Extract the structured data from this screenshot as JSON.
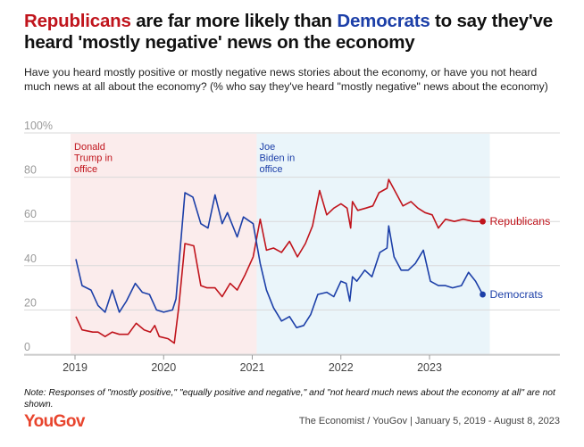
{
  "title": {
    "part1": "Republicans",
    "part2": " are far more likely than ",
    "part3": "Democrats",
    "part4": " to say they've heard 'mostly negative' news on the economy"
  },
  "subtitle": "Have you heard mostly positive or mostly negative news stories about the economy, or have you not heard much news at all about the economy? (% who say they've heard \"mostly negative\" news about the economy)",
  "note": "Note: Responses of \"mostly positive,\" \"equally positive and negative,\" and \"not heard much news about the economy at all\" are not shown.",
  "logo": "YouGov",
  "source": "The Economist / YouGov | January 5, 2019 - August 8, 2023",
  "colors": {
    "republicans": "#c0141c",
    "democrats": "#1c3fa8",
    "trump_band": "#fbecec",
    "biden_band": "#eaf5fa",
    "grid": "#d9d9d9"
  },
  "chart_data": {
    "type": "line",
    "xlabel": "",
    "ylabel": "",
    "xlim": [
      2018.95,
      2023.68
    ],
    "ylim": [
      0,
      100
    ],
    "y_ticks": [
      {
        "value": 0,
        "label": "0"
      },
      {
        "value": 20,
        "label": "20"
      },
      {
        "value": 40,
        "label": "40"
      },
      {
        "value": 60,
        "label": "60"
      },
      {
        "value": 80,
        "label": "80"
      },
      {
        "value": 100,
        "label": "100%"
      }
    ],
    "x_ticks": [
      {
        "value": 2019,
        "label": "2019"
      },
      {
        "value": 2020,
        "label": "2020"
      },
      {
        "value": 2021,
        "label": "2021"
      },
      {
        "value": 2022,
        "label": "2022"
      },
      {
        "value": 2023,
        "label": "2023"
      }
    ],
    "periods": [
      {
        "label": "Donald Trump in office",
        "start": 2018.95,
        "end": 2021.05,
        "color_key": "trump_band",
        "text_color_key": "republicans"
      },
      {
        "label": "Joe Biden in office",
        "start": 2021.05,
        "end": 2023.68,
        "color_key": "biden_band",
        "text_color_key": "democrats"
      }
    ],
    "series": [
      {
        "name": "Republicans",
        "color_key": "republicans",
        "points": [
          [
            2019.01,
            17
          ],
          [
            2019.08,
            11
          ],
          [
            2019.2,
            10
          ],
          [
            2019.26,
            10
          ],
          [
            2019.34,
            8
          ],
          [
            2019.42,
            10
          ],
          [
            2019.5,
            9
          ],
          [
            2019.6,
            9
          ],
          [
            2019.69,
            14
          ],
          [
            2019.78,
            11
          ],
          [
            2019.85,
            10
          ],
          [
            2019.9,
            13
          ],
          [
            2019.95,
            8
          ],
          [
            2020.05,
            7
          ],
          [
            2020.12,
            5
          ],
          [
            2020.17,
            21
          ],
          [
            2020.24,
            50
          ],
          [
            2020.34,
            49
          ],
          [
            2020.42,
            31
          ],
          [
            2020.49,
            30
          ],
          [
            2020.58,
            30
          ],
          [
            2020.66,
            26
          ],
          [
            2020.75,
            32
          ],
          [
            2020.83,
            29
          ],
          [
            2020.92,
            36
          ],
          [
            2021.01,
            44
          ],
          [
            2021.09,
            61
          ],
          [
            2021.16,
            47
          ],
          [
            2021.24,
            48
          ],
          [
            2021.33,
            46
          ],
          [
            2021.42,
            51
          ],
          [
            2021.51,
            44
          ],
          [
            2021.6,
            50
          ],
          [
            2021.68,
            58
          ],
          [
            2021.76,
            74
          ],
          [
            2021.84,
            63
          ],
          [
            2021.92,
            66
          ],
          [
            2022.0,
            68
          ],
          [
            2022.07,
            66
          ],
          [
            2022.11,
            57
          ],
          [
            2022.13,
            69
          ],
          [
            2022.19,
            65
          ],
          [
            2022.28,
            66
          ],
          [
            2022.36,
            67
          ],
          [
            2022.43,
            73
          ],
          [
            2022.52,
            75
          ],
          [
            2022.54,
            79
          ],
          [
            2022.62,
            73
          ],
          [
            2022.7,
            67
          ],
          [
            2022.79,
            69
          ],
          [
            2022.87,
            66
          ],
          [
            2022.95,
            64
          ],
          [
            2023.03,
            63
          ],
          [
            2023.1,
            57
          ],
          [
            2023.18,
            61
          ],
          [
            2023.28,
            60
          ],
          [
            2023.38,
            61
          ],
          [
            2023.5,
            60
          ],
          [
            2023.6,
            60
          ]
        ]
      },
      {
        "name": "Democrats",
        "color_key": "democrats",
        "points": [
          [
            2019.01,
            43
          ],
          [
            2019.08,
            31
          ],
          [
            2019.18,
            29
          ],
          [
            2019.26,
            22
          ],
          [
            2019.34,
            19
          ],
          [
            2019.42,
            29
          ],
          [
            2019.5,
            19
          ],
          [
            2019.58,
            24
          ],
          [
            2019.68,
            32
          ],
          [
            2019.76,
            28
          ],
          [
            2019.84,
            27
          ],
          [
            2019.92,
            20
          ],
          [
            2020.0,
            19
          ],
          [
            2020.1,
            20
          ],
          [
            2020.14,
            25
          ],
          [
            2020.24,
            73
          ],
          [
            2020.33,
            71
          ],
          [
            2020.42,
            59
          ],
          [
            2020.5,
            57
          ],
          [
            2020.58,
            72
          ],
          [
            2020.66,
            59
          ],
          [
            2020.72,
            64
          ],
          [
            2020.83,
            53
          ],
          [
            2020.9,
            62
          ],
          [
            2021.01,
            59
          ],
          [
            2021.09,
            41
          ],
          [
            2021.16,
            29
          ],
          [
            2021.24,
            21
          ],
          [
            2021.33,
            15
          ],
          [
            2021.42,
            17
          ],
          [
            2021.5,
            12
          ],
          [
            2021.58,
            13
          ],
          [
            2021.66,
            18
          ],
          [
            2021.74,
            27
          ],
          [
            2021.84,
            28
          ],
          [
            2021.92,
            26
          ],
          [
            2022.0,
            33
          ],
          [
            2022.06,
            32
          ],
          [
            2022.1,
            24
          ],
          [
            2022.13,
            35
          ],
          [
            2022.18,
            33
          ],
          [
            2022.27,
            38
          ],
          [
            2022.35,
            35
          ],
          [
            2022.44,
            46
          ],
          [
            2022.52,
            48
          ],
          [
            2022.54,
            58
          ],
          [
            2022.6,
            44
          ],
          [
            2022.68,
            38
          ],
          [
            2022.76,
            38
          ],
          [
            2022.84,
            41
          ],
          [
            2022.93,
            47
          ],
          [
            2023.01,
            33
          ],
          [
            2023.1,
            31
          ],
          [
            2023.18,
            31
          ],
          [
            2023.26,
            30
          ],
          [
            2023.36,
            31
          ],
          [
            2023.44,
            37
          ],
          [
            2023.52,
            33
          ],
          [
            2023.6,
            27
          ]
        ]
      }
    ]
  }
}
